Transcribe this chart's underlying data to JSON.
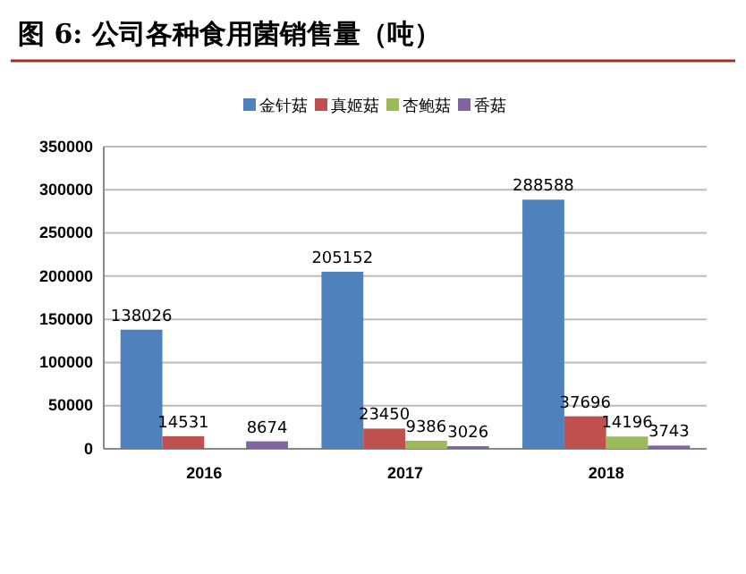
{
  "chart_data": {
    "type": "bar",
    "title": "图 6: 公司各种食用菌销售量（吨）",
    "categories": [
      "2016",
      "2017",
      "2018"
    ],
    "series": [
      {
        "name": "金针菇",
        "color": "#4f81bd",
        "values": [
          138026,
          205152,
          288588
        ]
      },
      {
        "name": "真姬菇",
        "color": "#c0504d",
        "values": [
          14531,
          23450,
          37696
        ]
      },
      {
        "name": "杏鲍菇",
        "color": "#9bbb59",
        "values": [
          null,
          9386,
          14196
        ]
      },
      {
        "name": "香菇",
        "color": "#8064a2",
        "values": [
          8674,
          3026,
          3743
        ]
      }
    ],
    "ylim": [
      0,
      350000
    ],
    "yticks": [
      0,
      50000,
      100000,
      150000,
      200000,
      250000,
      300000,
      350000
    ],
    "grid": "y",
    "legend": "top",
    "data_labels": true
  }
}
